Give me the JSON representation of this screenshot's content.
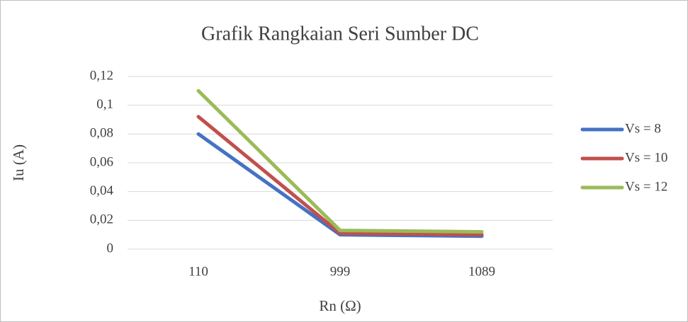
{
  "chart_data": {
    "type": "line",
    "title": "Grafik Rangkaian Seri Sumber DC",
    "x_label": "Rn (Ω)",
    "y_label": "Iu (A)",
    "categories": [
      "110",
      "999",
      "1089"
    ],
    "series": [
      {
        "name": "Vs = 8",
        "color": "#4472c4",
        "values": [
          0.08,
          0.01,
          0.009
        ]
      },
      {
        "name": "Vs = 10",
        "color": "#c0504d",
        "values": [
          0.092,
          0.011,
          0.01
        ]
      },
      {
        "name": "Vs = 12",
        "color": "#9bbb59",
        "values": [
          0.11,
          0.013,
          0.012
        ]
      }
    ],
    "ylim": [
      0,
      0.12
    ],
    "yticks": [
      0,
      {
        "value": 0.02,
        "label": "0,02"
      },
      {
        "value": 0.04,
        "label": "0,04"
      },
      {
        "value": 0.06,
        "label": "0,06"
      },
      {
        "value": 0.08,
        "label": "0,08"
      },
      {
        "value": 0.1,
        "label": "0,1"
      },
      {
        "value": 0.12,
        "label": "0,12"
      }
    ],
    "grid": true,
    "legend": "right"
  }
}
